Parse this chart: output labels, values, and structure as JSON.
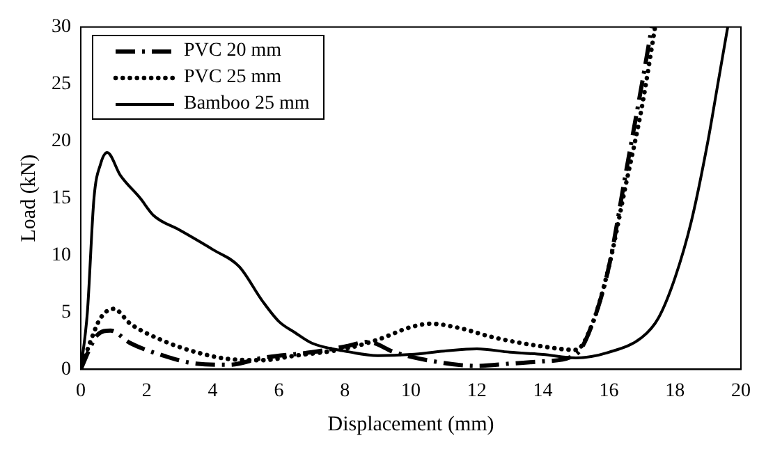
{
  "chart_data": {
    "type": "line",
    "xlabel": "Displacement (mm)",
    "ylabel": "Load (kN)",
    "xlim": [
      0,
      20
    ],
    "ylim": [
      0,
      30
    ],
    "xticks": [
      0,
      2,
      4,
      6,
      8,
      10,
      12,
      14,
      16,
      18,
      20
    ],
    "yticks": [
      0,
      5,
      10,
      15,
      20,
      25,
      30
    ],
    "grid": false,
    "legend": "top left",
    "marker": "none",
    "series": [
      {
        "name": "PVC 20 mm",
        "color": "#000000",
        "line_style": "dashed",
        "x": [
          0,
          0.3,
          0.5,
          0.9,
          1.5,
          2.5,
          3.5,
          4.5,
          5.5,
          7,
          8,
          8.7,
          9.5,
          10.5,
          12,
          13,
          14,
          15,
          15.5,
          16,
          16.5,
          17,
          17.3
        ],
        "values": [
          0,
          2,
          3,
          3.4,
          2.3,
          1.2,
          0.5,
          0.4,
          1,
          1.5,
          2,
          2.4,
          1.5,
          0.8,
          0.3,
          0.5,
          0.7,
          1.3,
          4,
          9,
          17,
          25,
          30
        ]
      },
      {
        "name": "PVC 25 mm",
        "color": "#000000",
        "line_style": "dotted",
        "x": [
          0,
          0.3,
          0.6,
          1,
          1.5,
          2.5,
          3.5,
          4.5,
          5.5,
          6.5,
          8,
          9,
          10,
          10.6,
          11.5,
          12.5,
          14,
          15,
          15.5,
          16,
          16.5,
          17,
          17.4
        ],
        "values": [
          0,
          2.5,
          4.5,
          5.3,
          4,
          2.5,
          1.5,
          0.9,
          0.8,
          1.2,
          1.8,
          2.6,
          3.7,
          4,
          3.6,
          2.8,
          2,
          1.7,
          4,
          9,
          16,
          23,
          30
        ]
      },
      {
        "name": "Bamboo 25 mm",
        "color": "#000000",
        "line_style": "solid",
        "x": [
          0,
          0.2,
          0.4,
          0.6,
          0.8,
          1.2,
          1.8,
          2.2,
          3,
          4,
          4.8,
          5.5,
          6,
          6.5,
          7,
          8,
          9,
          10,
          11,
          12,
          13,
          14,
          15,
          16,
          17,
          17.5,
          18,
          18.5,
          19,
          19.3,
          19.6
        ],
        "values": [
          0,
          5,
          15,
          18,
          19,
          17,
          15,
          13.5,
          12.2,
          10.5,
          9,
          6,
          4.2,
          3.2,
          2.3,
          1.6,
          1.2,
          1.3,
          1.6,
          1.8,
          1.5,
          1.3,
          1,
          1.5,
          2.8,
          4.5,
          8,
          13,
          20,
          25,
          30
        ]
      }
    ]
  }
}
